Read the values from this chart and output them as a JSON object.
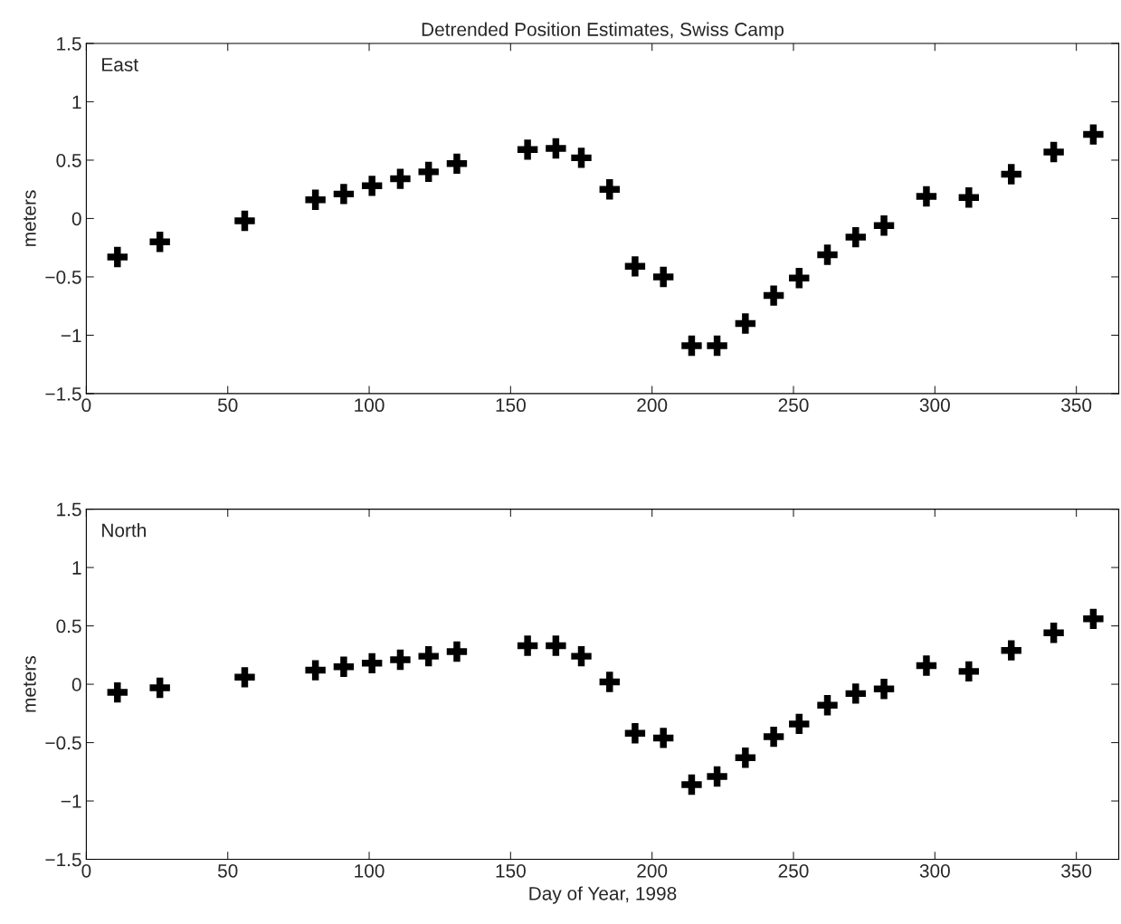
{
  "chart_data": [
    {
      "type": "scatter",
      "title": "Detrended Position Estimates, Swiss Camp",
      "ylabel": "meters",
      "annotations": [
        "East"
      ],
      "marker": "cross",
      "grid": false,
      "xlim": [
        0,
        365
      ],
      "ylim": [
        -1.5,
        1.5
      ],
      "xticks": [
        0,
        50,
        100,
        150,
        200,
        250,
        300,
        350
      ],
      "yticks": [
        {
          "value": -1.5,
          "label": "−1.5"
        },
        {
          "value": -1,
          "label": "−1"
        },
        {
          "value": -0.5,
          "label": "−0.5"
        },
        0,
        0.5,
        1,
        1.5
      ],
      "x": [
        11,
        26,
        56,
        81,
        91,
        101,
        111,
        121,
        131,
        156,
        166,
        175,
        185,
        194,
        204,
        214,
        223,
        233,
        243,
        252,
        262,
        272,
        282,
        297,
        312,
        327,
        342,
        356
      ],
      "series": [
        {
          "color": "#000000",
          "values": [
            -0.33,
            -0.2,
            -0.02,
            0.16,
            0.21,
            0.28,
            0.34,
            0.4,
            0.47,
            0.59,
            0.6,
            0.52,
            0.25,
            -0.41,
            -0.5,
            -1.09,
            -1.09,
            -0.9,
            -0.66,
            -0.51,
            -0.31,
            -0.16,
            -0.06,
            0.19,
            0.18,
            0.38,
            0.57,
            0.72
          ]
        }
      ]
    },
    {
      "type": "scatter",
      "xlabel": "Day of Year, 1998",
      "ylabel": "meters",
      "annotations": [
        "North"
      ],
      "marker": "cross",
      "grid": false,
      "xlim": [
        0,
        365
      ],
      "ylim": [
        -1.5,
        1.5
      ],
      "xticks": [
        0,
        50,
        100,
        150,
        200,
        250,
        300,
        350
      ],
      "yticks": [
        {
          "value": -1.5,
          "label": "−1.5"
        },
        {
          "value": -1,
          "label": "−1"
        },
        {
          "value": -0.5,
          "label": "−0.5"
        },
        0,
        0.5,
        1,
        1.5
      ],
      "x": [
        11,
        26,
        56,
        81,
        91,
        101,
        111,
        121,
        131,
        156,
        166,
        175,
        185,
        194,
        204,
        214,
        223,
        233,
        243,
        252,
        262,
        272,
        282,
        297,
        312,
        327,
        342,
        356
      ],
      "series": [
        {
          "color": "#000000",
          "values": [
            -0.07,
            -0.03,
            0.06,
            0.12,
            0.15,
            0.18,
            0.21,
            0.24,
            0.28,
            0.33,
            0.33,
            0.24,
            0.02,
            -0.42,
            -0.46,
            -0.86,
            -0.79,
            -0.63,
            -0.45,
            -0.34,
            -0.18,
            -0.08,
            -0.04,
            0.16,
            0.11,
            0.29,
            0.44,
            0.56
          ]
        }
      ]
    }
  ]
}
